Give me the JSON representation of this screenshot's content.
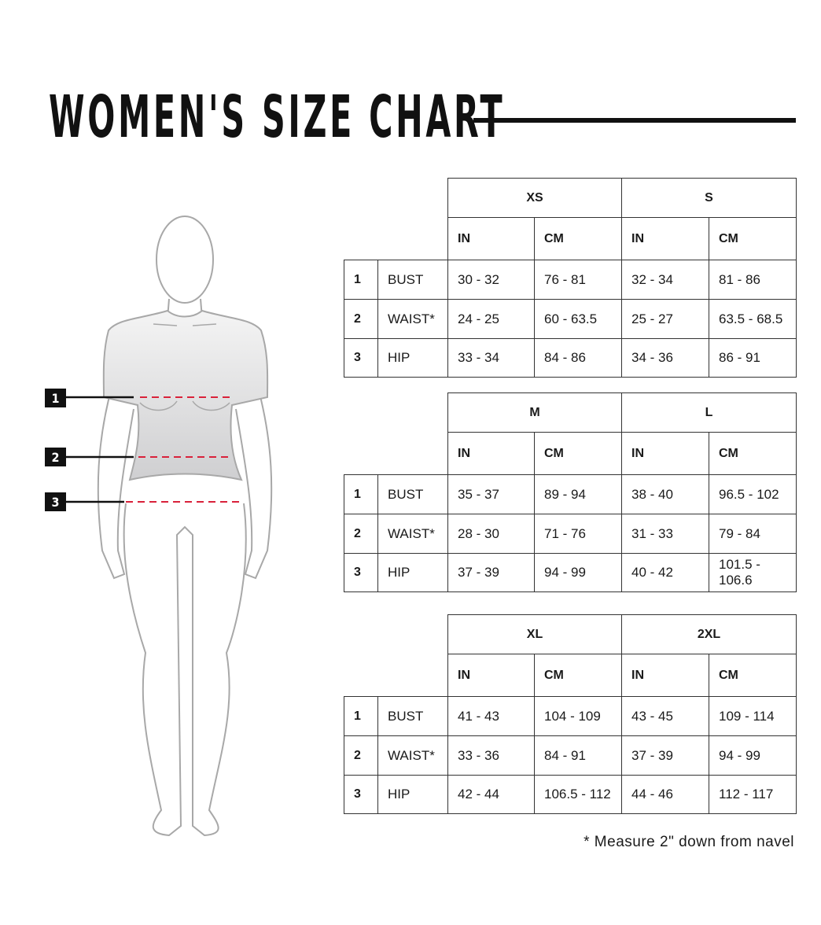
{
  "title": "WOMEN'S SIZE CHART",
  "units": [
    "IN",
    "CM"
  ],
  "measurements": [
    {
      "num": "1",
      "label": "BUST"
    },
    {
      "num": "2",
      "label": "WAIST*"
    },
    {
      "num": "3",
      "label": "HIP"
    }
  ],
  "tables": [
    {
      "sizes": [
        {
          "name": "XS",
          "values": [
            [
              "30 - 32",
              "76 - 81"
            ],
            [
              "24 - 25",
              "60 - 63.5"
            ],
            [
              "33 - 34",
              "84 - 86"
            ]
          ]
        },
        {
          "name": "S",
          "values": [
            [
              "32 - 34",
              "81 - 86"
            ],
            [
              "25 - 27",
              "63.5 - 68.5"
            ],
            [
              "34 - 36",
              "86 - 91"
            ]
          ]
        }
      ]
    },
    {
      "sizes": [
        {
          "name": "M",
          "values": [
            [
              "35 - 37",
              "89 - 94"
            ],
            [
              "28 - 30",
              "71 - 76"
            ],
            [
              "37 - 39",
              "94 - 99"
            ]
          ]
        },
        {
          "name": "L",
          "values": [
            [
              "38 - 40",
              "96.5 - 102"
            ],
            [
              "31 - 33",
              "79 - 84"
            ],
            [
              "40 - 42",
              "101.5 - 106.6"
            ]
          ]
        }
      ]
    },
    {
      "sizes": [
        {
          "name": "XL",
          "values": [
            [
              "41 - 43",
              "104 - 109"
            ],
            [
              "33 - 36",
              "84 - 91"
            ],
            [
              "42 - 44",
              "106.5 - 112"
            ]
          ]
        },
        {
          "name": "2XL",
          "values": [
            [
              "43 - 45",
              "109 - 114"
            ],
            [
              "37 - 39",
              "94 - 99"
            ],
            [
              "44 - 46",
              "112 - 117"
            ]
          ]
        }
      ]
    }
  ],
  "figure": {
    "markers": [
      "1",
      "2",
      "3"
    ],
    "measure_line_color": "#d9213a"
  },
  "footnote": "* Measure 2\" down from navel"
}
